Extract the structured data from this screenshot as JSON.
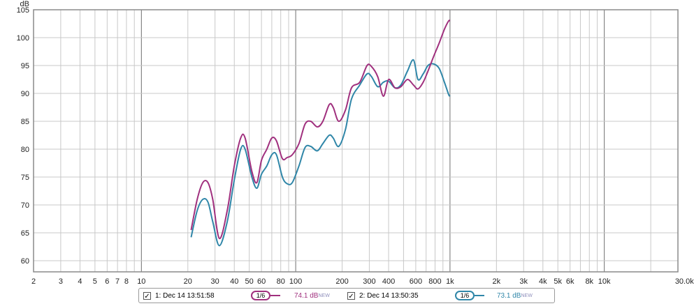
{
  "chart_data": {
    "type": "line",
    "x_scale": "log",
    "xlim": [
      2,
      30000
    ],
    "ylim": [
      58,
      105
    ],
    "yunit": "dB",
    "xunit_label": "30.0kHz",
    "y_ticks": [
      60,
      65,
      70,
      75,
      80,
      85,
      90,
      95,
      100,
      105
    ],
    "x_ticks": [
      {
        "v": 2,
        "label": "2"
      },
      {
        "v": 3,
        "label": "3"
      },
      {
        "v": 4,
        "label": "4"
      },
      {
        "v": 5,
        "label": "5"
      },
      {
        "v": 6,
        "label": "6"
      },
      {
        "v": 7,
        "label": "7"
      },
      {
        "v": 8,
        "label": "8"
      },
      {
        "v": 10,
        "label": "10"
      },
      {
        "v": 20,
        "label": "20"
      },
      {
        "v": 30,
        "label": "30"
      },
      {
        "v": 40,
        "label": "40"
      },
      {
        "v": 50,
        "label": "50"
      },
      {
        "v": 60,
        "label": "60"
      },
      {
        "v": 80,
        "label": "80"
      },
      {
        "v": 100,
        "label": "100"
      },
      {
        "v": 200,
        "label": "200"
      },
      {
        "v": 300,
        "label": "300"
      },
      {
        "v": 400,
        "label": "400"
      },
      {
        "v": 600,
        "label": "600"
      },
      {
        "v": 800,
        "label": "800"
      },
      {
        "v": 1000,
        "label": "1k"
      },
      {
        "v": 2000,
        "label": "2k"
      },
      {
        "v": 3000,
        "label": "3k"
      },
      {
        "v": 4000,
        "label": "4k"
      },
      {
        "v": 5000,
        "label": "5k"
      },
      {
        "v": 6000,
        "label": "6k"
      },
      {
        "v": 8000,
        "label": "8k"
      },
      {
        "v": 10000,
        "label": "10k"
      },
      {
        "v": 30000,
        "label": "30.0kHz"
      }
    ],
    "grid": true,
    "series": [
      {
        "name": "1: Dec 14 13:51:58",
        "color": "#a0307e",
        "x": [
          21,
          23,
          25,
          27,
          29,
          32,
          36,
          40,
          44,
          47,
          52,
          56,
          60,
          65,
          70,
          75,
          82,
          88,
          95,
          105,
          115,
          125,
          138,
          150,
          165,
          175,
          190,
          210,
          230,
          260,
          290,
          310,
          340,
          370,
          400,
          440,
          480,
          530,
          580,
          620,
          670,
          720,
          780,
          850,
          920,
          980,
          1000
        ],
        "y": [
          65.5,
          71,
          74,
          74,
          71,
          64,
          69,
          77,
          82,
          82,
          76,
          74,
          78,
          80,
          82,
          81.5,
          78.3,
          78.5,
          79,
          81,
          84.5,
          85,
          84,
          85,
          88,
          87.5,
          85,
          87,
          91,
          92,
          95,
          94.8,
          93,
          89.5,
          92.5,
          91,
          91.2,
          92.5,
          91.5,
          90.8,
          92,
          94,
          96.5,
          99,
          101.5,
          103,
          103
        ]
      },
      {
        "name": "2: Dec 14 13:50:35",
        "color": "#2f86a8",
        "x": [
          21,
          23,
          25,
          27,
          29,
          32,
          36,
          40,
          44,
          47,
          52,
          56,
          60,
          65,
          70,
          75,
          82,
          88,
          95,
          105,
          115,
          125,
          138,
          150,
          165,
          175,
          190,
          210,
          230,
          260,
          290,
          310,
          340,
          370,
          400,
          440,
          480,
          530,
          580,
          620,
          670,
          720,
          780,
          850,
          920,
          980,
          1000
        ],
        "y": [
          64.2,
          69,
          71,
          70.5,
          67,
          62.7,
          67,
          74.5,
          80,
          80,
          75,
          73,
          75.5,
          77,
          79,
          79,
          75,
          73.8,
          74,
          77,
          80.3,
          80.5,
          79.7,
          81,
          82.5,
          82,
          80.5,
          83.5,
          89,
          91.5,
          93.5,
          93,
          91.2,
          92,
          92.2,
          91,
          91.5,
          94,
          96,
          92.5,
          93.5,
          95,
          95.3,
          94.5,
          92,
          89.8,
          89.5
        ]
      }
    ]
  },
  "legend": {
    "items": [
      {
        "label": "1: Dec 14 13:51:58",
        "smoothing": "1/6",
        "level": "74.1 dB",
        "badge": "NEW",
        "color": "#a0307e"
      },
      {
        "label": "2: Dec 14 13:50:35",
        "smoothing": "1/6",
        "level": "73.1 dB",
        "badge": "NEW",
        "color": "#2f86a8"
      }
    ],
    "checkmark": "✓"
  }
}
